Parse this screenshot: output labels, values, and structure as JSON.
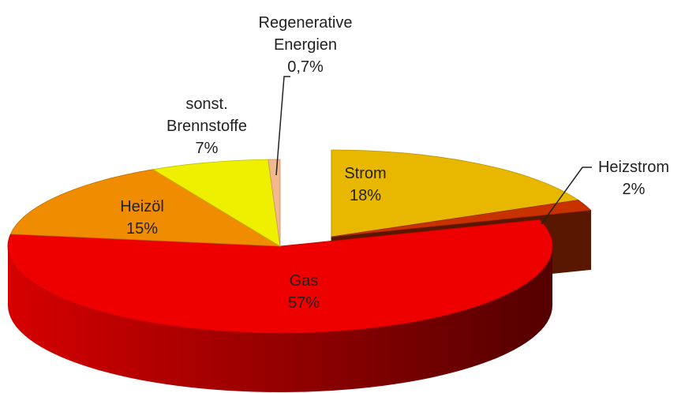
{
  "chart_data": {
    "type": "pie",
    "categories": [
      "Strom",
      "Heizstrom",
      "Gas",
      "Heizöl",
      "sonst. Brennstoffe",
      "Regenerative Energien"
    ],
    "values": [
      18,
      2,
      57,
      15,
      7,
      0.7
    ],
    "value_labels": [
      "18%",
      "2%",
      "57%",
      "15%",
      "7%",
      "0,7%"
    ],
    "colors": [
      "#e8b800",
      "#c83200",
      "#ee0000",
      "#f08c00",
      "#eef000",
      "#f2b88e"
    ]
  }
}
